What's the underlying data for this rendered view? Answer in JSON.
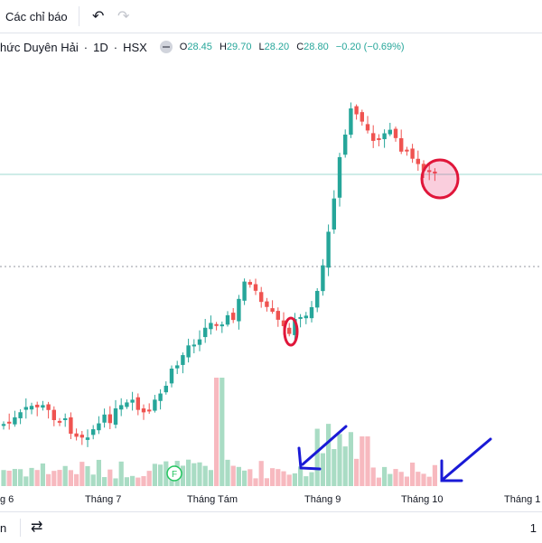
{
  "toolbar": {
    "indicators_label": "Các chỉ báo",
    "undo_icon": "undo-icon",
    "redo_icon": "redo-icon"
  },
  "legend": {
    "symbol": "hức Duyên Hải",
    "interval": "1D",
    "exchange": "HSX",
    "open_key": "O",
    "open": "28.45",
    "high_key": "H",
    "high": "29.70",
    "low_key": "L",
    "low": "28.20",
    "close_key": "C",
    "close": "28.80",
    "change": "−0.20 (−0.69%)"
  },
  "colors": {
    "up": "#26a69a",
    "down": "#ef5350",
    "vol_up": "#a9dcc4",
    "vol_down": "#f7b9bf",
    "annot_red": "#e0163a",
    "annot_blue": "#1a1ad6",
    "flag": "#22c55e"
  },
  "chart_data": {
    "type": "candlestick",
    "x_axis_labels": [
      "g 6",
      "Tháng 7",
      "Tháng Tám",
      "Tháng 9",
      "Tháng 10",
      "Tháng 1"
    ],
    "event_marker": "F",
    "annotations": [
      "red-ellipse",
      "pink-ellipse",
      "blue-arrow",
      "blue-arrow"
    ],
    "price_lines": [
      "horizontal-dotted",
      "horizontal-solid-last-price"
    ]
  },
  "bottombar": {
    "left_text": "n",
    "compare_icon": "compare-icon",
    "right_text": "1"
  }
}
